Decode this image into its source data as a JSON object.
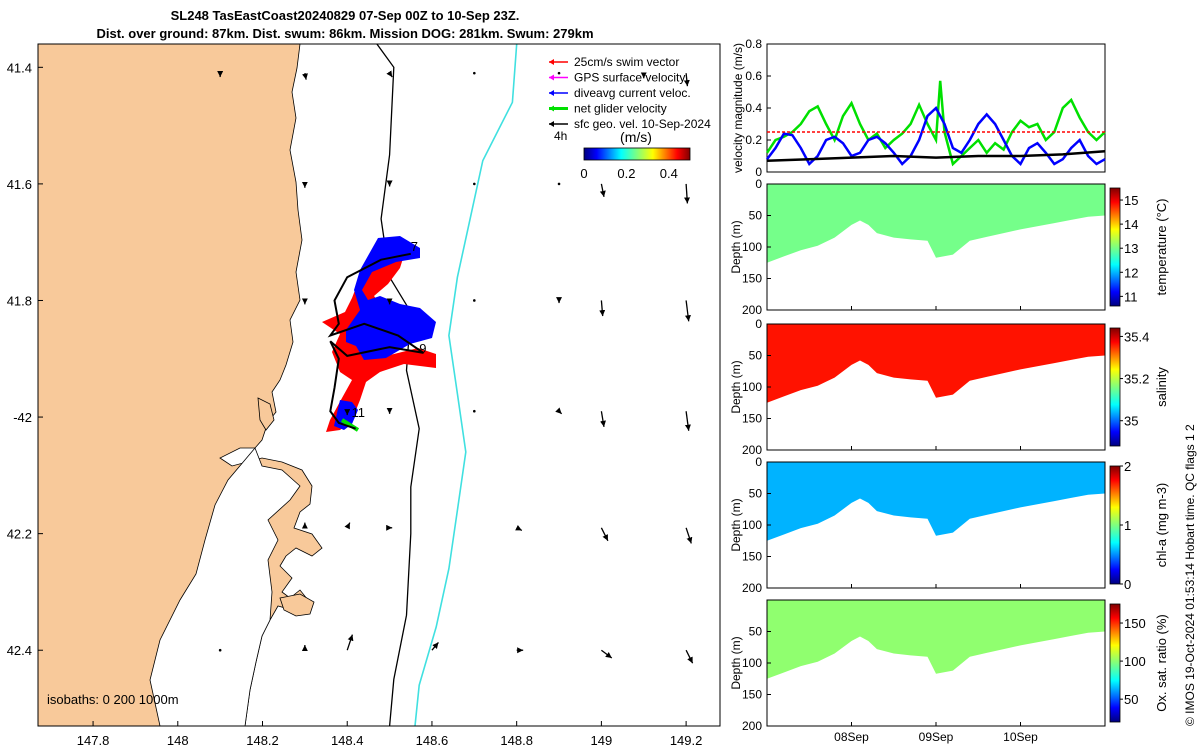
{
  "title": {
    "line1": "SL248 TasEastCoast20240829 07-Sep 00Z to 10-Sep 23Z.",
    "line2": "Dist. over ground: 87km. Dist. swum: 86km. Mission DOG: 281km. Swum: 279km"
  },
  "stamp": "© IMOS 19-Oct-2024 01:53:14 Hobart time. QC flags 1  2",
  "colors": {
    "land": "#f8c99a",
    "swim_vector": "#ff0000",
    "gps_velocity": "#ff00ff",
    "dive_avg_current": "#0000ff",
    "net_glider_velocity": "#00e000",
    "sfc_geo_vel": "#000000",
    "isobath_1000m": "#40e0e0"
  },
  "chart_data": [
    {
      "type": "map",
      "name": "glider-track-map",
      "xlim": [
        147.67,
        149.28
      ],
      "ylim": [
        -42.53,
        -41.36
      ],
      "x_ticks": [
        147.8,
        148,
        148.2,
        148.4,
        148.6,
        148.8,
        149,
        149.2
      ],
      "x_tick_labels": [
        "147.8",
        "148",
        "148.2",
        "148.4",
        "148.6",
        "148.8",
        "149",
        "149.2"
      ],
      "y_ticks": [
        -41.4,
        -41.6,
        -41.8,
        -42,
        -42.2,
        -42.4
      ],
      "y_tick_labels": [
        "41.4",
        "41.6",
        "41.8",
        "-42",
        "42.2",
        "42.4"
      ],
      "legend": [
        {
          "label": "25cm/s swim vector",
          "color": "#ff0000"
        },
        {
          "label": "GPS surface velocity",
          "color": "#ff00ff"
        },
        {
          "label": "diveavg current veloc.",
          "color": "#0000ff"
        },
        {
          "label": "net glider velocity",
          "color": "#00e000"
        },
        {
          "label": "sfc geo. vel. 10-Sep-2024",
          "color": "#000000"
        }
      ],
      "interval_label": "4h",
      "colorbar": {
        "label": "(m/s)",
        "ticks": [
          "0",
          "0.2",
          "0.4"
        ],
        "range": [
          0,
          0.5
        ]
      },
      "isobaths_label": "isobaths: 0   200  1000m",
      "day_labels": [
        {
          "text": "7",
          "lon": 148.55,
          "lat": -41.715
        },
        {
          "text": "9",
          "lon": 148.57,
          "lat": -41.89
        },
        {
          "text": "11",
          "lon": 148.41,
          "lat": -42.0
        }
      ],
      "track": [
        [
          148.55,
          -41.72
        ],
        [
          148.48,
          -41.73
        ],
        [
          148.4,
          -41.76
        ],
        [
          148.37,
          -41.8
        ],
        [
          148.38,
          -41.84
        ],
        [
          148.36,
          -41.86
        ],
        [
          148.44,
          -41.84
        ],
        [
          148.52,
          -41.86
        ],
        [
          148.58,
          -41.89
        ],
        [
          148.5,
          -41.88
        ],
        [
          148.4,
          -41.895
        ],
        [
          148.36,
          -41.87
        ],
        [
          148.38,
          -41.9
        ],
        [
          148.37,
          -41.95
        ],
        [
          148.36,
          -41.99
        ],
        [
          148.38,
          -42.01
        ],
        [
          148.42,
          -42.02
        ]
      ],
      "isobath_200m": [
        [
          148.47,
          -41.36
        ],
        [
          148.51,
          -41.4
        ],
        [
          148.5,
          -41.55
        ],
        [
          148.48,
          -41.66
        ],
        [
          148.5,
          -41.76
        ],
        [
          148.55,
          -41.82
        ],
        [
          148.54,
          -41.92
        ],
        [
          148.57,
          -42.02
        ],
        [
          148.55,
          -42.12
        ],
        [
          148.55,
          -42.2
        ],
        [
          148.54,
          -42.34
        ],
        [
          148.51,
          -42.45
        ],
        [
          148.5,
          -42.53
        ]
      ],
      "isobath_1000m": [
        [
          148.8,
          -41.36
        ],
        [
          148.79,
          -41.46
        ],
        [
          148.72,
          -41.56
        ],
        [
          148.69,
          -41.66
        ],
        [
          148.66,
          -41.76
        ],
        [
          148.64,
          -41.86
        ],
        [
          148.66,
          -41.96
        ],
        [
          148.68,
          -42.06
        ],
        [
          148.66,
          -42.16
        ],
        [
          148.64,
          -42.26
        ],
        [
          148.61,
          -42.36
        ],
        [
          148.57,
          -42.46
        ],
        [
          148.56,
          -42.53
        ]
      ],
      "sfc_vectors": [
        {
          "lon": 148.1,
          "lat": -41.41,
          "u": 0.0,
          "v": -0.03
        },
        {
          "lon": 148.3,
          "lat": -41.41,
          "u": 0.01,
          "v": -0.05
        },
        {
          "lon": 148.5,
          "lat": -41.41,
          "u": 0.02,
          "v": -0.03
        },
        {
          "lon": 148.7,
          "lat": -41.41,
          "u": 0.01,
          "v": 0.0
        },
        {
          "lon": 148.9,
          "lat": -41.41,
          "u": 0.0,
          "v": 0.0
        },
        {
          "lon": 149.1,
          "lat": -41.41,
          "u": 0.0,
          "v": -0.04
        },
        {
          "lon": 149.2,
          "lat": -41.41,
          "u": 0.01,
          "v": -0.1
        },
        {
          "lon": 148.3,
          "lat": -41.6,
          "u": 0.0,
          "v": -0.03
        },
        {
          "lon": 148.5,
          "lat": -41.6,
          "u": 0.0,
          "v": -0.02
        },
        {
          "lon": 148.7,
          "lat": -41.6,
          "u": 0.0,
          "v": 0.0
        },
        {
          "lon": 148.9,
          "lat": -41.6,
          "u": 0.0,
          "v": 0.0
        },
        {
          "lon": 149.0,
          "lat": -41.6,
          "u": 0.02,
          "v": -0.1
        },
        {
          "lon": 149.2,
          "lat": -41.6,
          "u": 0.01,
          "v": -0.15
        },
        {
          "lon": 148.3,
          "lat": -41.8,
          "u": 0.0,
          "v": -0.03
        },
        {
          "lon": 148.5,
          "lat": -41.8,
          "u": 0.0,
          "v": -0.03
        },
        {
          "lon": 148.7,
          "lat": -41.8,
          "u": 0.0,
          "v": 0.0
        },
        {
          "lon": 148.9,
          "lat": -41.8,
          "u": 0.0,
          "v": -0.02
        },
        {
          "lon": 149.0,
          "lat": -41.8,
          "u": 0.01,
          "v": -0.12
        },
        {
          "lon": 149.2,
          "lat": -41.8,
          "u": 0.02,
          "v": -0.16
        },
        {
          "lon": 148.4,
          "lat": -41.99,
          "u": 0.0,
          "v": -0.03
        },
        {
          "lon": 148.5,
          "lat": -41.99,
          "u": 0.0,
          "v": -0.02
        },
        {
          "lon": 148.7,
          "lat": -41.99,
          "u": 0.01,
          "v": 0.0
        },
        {
          "lon": 148.9,
          "lat": -41.99,
          "u": 0.02,
          "v": -0.02
        },
        {
          "lon": 149.0,
          "lat": -41.99,
          "u": 0.02,
          "v": -0.12
        },
        {
          "lon": 149.2,
          "lat": -41.99,
          "u": 0.02,
          "v": -0.15
        },
        {
          "lon": 148.3,
          "lat": -42.19,
          "u": 0.0,
          "v": 0.04
        },
        {
          "lon": 148.4,
          "lat": -42.19,
          "u": 0.02,
          "v": 0.04
        },
        {
          "lon": 148.5,
          "lat": -42.19,
          "u": 0.02,
          "v": 0.0
        },
        {
          "lon": 148.8,
          "lat": -42.19,
          "u": 0.04,
          "v": -0.02
        },
        {
          "lon": 149.0,
          "lat": -42.19,
          "u": 0.05,
          "v": -0.1
        },
        {
          "lon": 149.2,
          "lat": -42.19,
          "u": 0.04,
          "v": -0.12
        },
        {
          "lon": 148.1,
          "lat": -42.4,
          "u": 0.0,
          "v": 0.0
        },
        {
          "lon": 148.3,
          "lat": -42.4,
          "u": 0.0,
          "v": 0.04
        },
        {
          "lon": 148.4,
          "lat": -42.4,
          "u": 0.04,
          "v": 0.12
        },
        {
          "lon": 148.6,
          "lat": -42.4,
          "u": 0.05,
          "v": 0.06
        },
        {
          "lon": 148.8,
          "lat": -42.4,
          "u": 0.05,
          "v": 0.0
        },
        {
          "lon": 149.0,
          "lat": -42.4,
          "u": 0.08,
          "v": -0.06
        },
        {
          "lon": 149.2,
          "lat": -42.4,
          "u": 0.05,
          "v": -0.1
        }
      ]
    },
    {
      "type": "line",
      "name": "velocity-magnitude",
      "ylabel": "velocity magnitude (m/s)",
      "ylim": [
        0,
        0.8
      ],
      "y_ticks": [
        "0",
        "0.2",
        "0.4",
        "0.6",
        "0.8"
      ],
      "x_unit": "days since 07-Sep 00Z",
      "xlim": [
        0,
        4
      ],
      "series": [
        {
          "name": "net glider velocity",
          "color": "#00e000",
          "x": [
            0,
            0.1,
            0.2,
            0.3,
            0.4,
            0.5,
            0.6,
            0.7,
            0.8,
            0.9,
            1.0,
            1.1,
            1.2,
            1.3,
            1.4,
            1.5,
            1.6,
            1.7,
            1.8,
            1.9,
            2.0,
            2.05,
            2.1,
            2.2,
            2.3,
            2.4,
            2.5,
            2.6,
            2.7,
            2.8,
            2.9,
            3.0,
            3.1,
            3.2,
            3.3,
            3.4,
            3.5,
            3.6,
            3.7,
            3.8,
            3.9,
            4.0
          ],
          "y": [
            0.12,
            0.2,
            0.22,
            0.25,
            0.3,
            0.38,
            0.41,
            0.3,
            0.2,
            0.35,
            0.43,
            0.3,
            0.2,
            0.24,
            0.15,
            0.2,
            0.24,
            0.3,
            0.42,
            0.3,
            0.2,
            0.57,
            0.25,
            0.05,
            0.1,
            0.15,
            0.2,
            0.12,
            0.18,
            0.14,
            0.25,
            0.32,
            0.28,
            0.3,
            0.2,
            0.25,
            0.4,
            0.45,
            0.34,
            0.25,
            0.2,
            0.25
          ]
        },
        {
          "name": "diveavg current veloc.",
          "color": "#0000ff",
          "x": [
            0,
            0.1,
            0.2,
            0.3,
            0.4,
            0.5,
            0.6,
            0.7,
            0.8,
            0.9,
            1.0,
            1.1,
            1.2,
            1.3,
            1.4,
            1.5,
            1.6,
            1.7,
            1.8,
            1.9,
            2.0,
            2.1,
            2.2,
            2.3,
            2.4,
            2.5,
            2.6,
            2.7,
            2.8,
            2.9,
            3.0,
            3.1,
            3.2,
            3.3,
            3.4,
            3.5,
            3.6,
            3.7,
            3.8,
            3.9,
            4.0
          ],
          "y": [
            0.08,
            0.15,
            0.24,
            0.23,
            0.15,
            0.05,
            0.1,
            0.2,
            0.22,
            0.18,
            0.1,
            0.12,
            0.2,
            0.22,
            0.18,
            0.12,
            0.05,
            0.1,
            0.2,
            0.35,
            0.4,
            0.3,
            0.15,
            0.12,
            0.2,
            0.3,
            0.36,
            0.3,
            0.2,
            0.1,
            0.05,
            0.15,
            0.18,
            0.12,
            0.05,
            0.08,
            0.15,
            0.2,
            0.1,
            0.05,
            0.08
          ]
        },
        {
          "name": "sfc geo. vel.",
          "color": "#000000",
          "x": [
            0,
            0.5,
            1.0,
            1.5,
            2.0,
            2.5,
            3.0,
            3.5,
            4.0
          ],
          "y": [
            0.07,
            0.08,
            0.09,
            0.1,
            0.09,
            0.1,
            0.1,
            0.11,
            0.13
          ]
        },
        {
          "name": "25cm/s swim",
          "color": "#ff0000",
          "x": [
            0,
            4
          ],
          "y": [
            0.25,
            0.25
          ]
        }
      ]
    },
    {
      "type": "heatmap",
      "name": "temperature-section",
      "ylabel": "Depth (m)",
      "ylim": [
        0,
        200
      ],
      "y_ticks": [
        "0",
        "50",
        "100",
        "150",
        "200"
      ],
      "cbar_label": "temperature (°C)",
      "cbar_ticks": [
        "11",
        "12",
        "13",
        "14",
        "15"
      ],
      "cbar_range": [
        10.6,
        15.5
      ],
      "value": 13.0
    },
    {
      "type": "heatmap",
      "name": "salinity-section",
      "ylabel": "Depth (m)",
      "ylim": [
        0,
        200
      ],
      "y_ticks": [
        "0",
        "50",
        "100",
        "150",
        "200"
      ],
      "cbar_label": "salinity",
      "cbar_ticks": [
        "35",
        "35.2",
        "35.4"
      ],
      "cbar_range": [
        34.88,
        35.44
      ],
      "value": 35.36
    },
    {
      "type": "heatmap",
      "name": "chla-section",
      "ylabel": "Depth (m)",
      "ylim": [
        0,
        200
      ],
      "y_ticks": [
        "0",
        "50",
        "100",
        "150",
        "200"
      ],
      "cbar_label": "chl-a (mg m-3)",
      "cbar_ticks": [
        "0",
        "1",
        "2"
      ],
      "cbar_range": [
        0,
        2
      ],
      "value": 0.6
    },
    {
      "type": "heatmap",
      "name": "oxygen-section",
      "ylabel": "Depth (m)",
      "ylim": [
        0,
        200
      ],
      "y_ticks": [
        "50",
        "100",
        "150",
        "200"
      ],
      "cbar_label": "Ox. sat. ratio (%)",
      "cbar_ticks": [
        "50",
        "100",
        "150"
      ],
      "cbar_range": [
        20,
        175
      ],
      "value": 100,
      "x_unit": "days since 07-Sep 00Z",
      "xlim": [
        0,
        4
      ],
      "x_ticks": [
        1,
        2,
        3
      ],
      "x_tick_labels": [
        "08Sep",
        "09Sep",
        "10Sep"
      ]
    }
  ],
  "section_bottom_depth": {
    "x": [
      0,
      0.2,
      0.4,
      0.6,
      0.8,
      1.0,
      1.1,
      1.2,
      1.3,
      1.5,
      1.7,
      1.9,
      2.0,
      2.2,
      2.4,
      2.6,
      2.8,
      3.0,
      3.2,
      3.4,
      3.6,
      3.8,
      4.0
    ],
    "y": [
      125,
      115,
      105,
      98,
      85,
      65,
      58,
      65,
      78,
      85,
      88,
      90,
      117,
      112,
      90,
      84,
      78,
      72,
      67,
      62,
      57,
      52,
      50
    ]
  }
}
